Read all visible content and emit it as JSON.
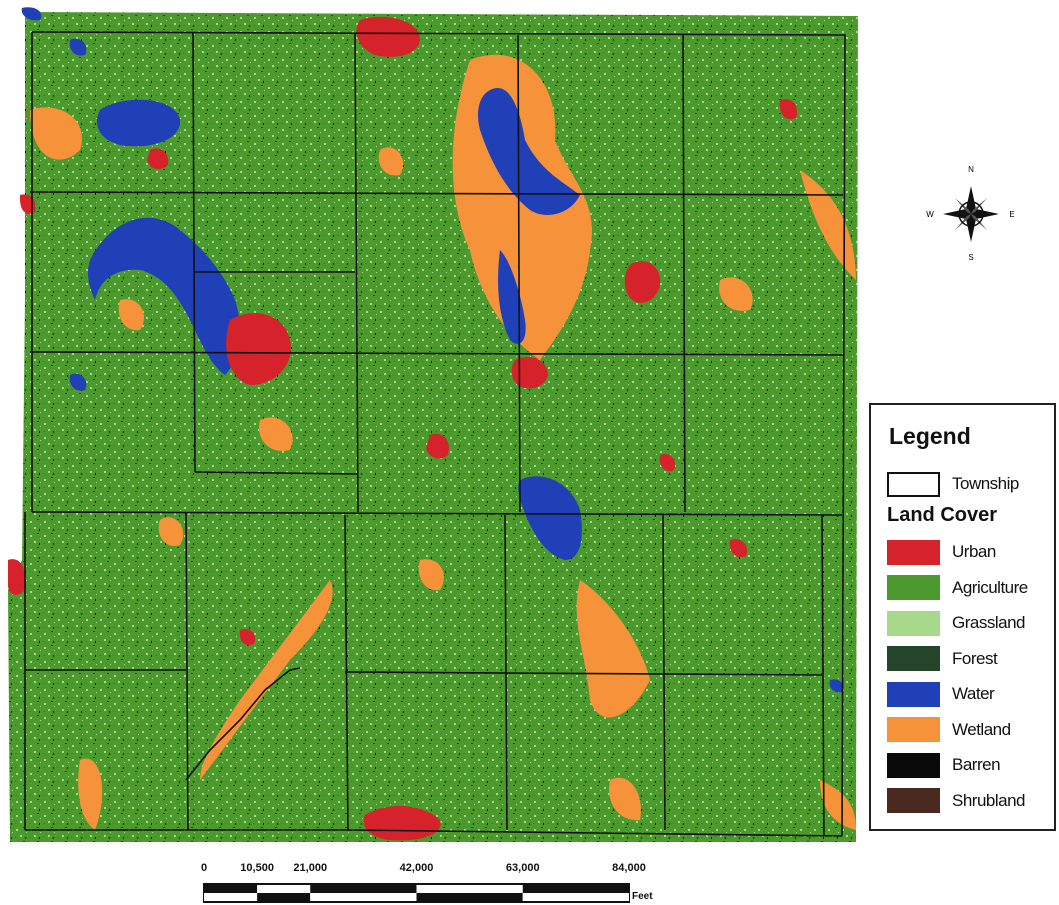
{
  "legend": {
    "title": "Legend",
    "township_label": "Township",
    "land_cover_title": "Land Cover",
    "classes": [
      {
        "label": "Urban",
        "color": "#d6222a"
      },
      {
        "label": "Agriculture",
        "color": "#4c9a2e"
      },
      {
        "label": "Grassland",
        "color": "#a8d88a"
      },
      {
        "label": "Forest",
        "color": "#25452a"
      },
      {
        "label": "Water",
        "color": "#2040b8"
      },
      {
        "label": "Wetland",
        "color": "#f5923a"
      },
      {
        "label": "Barren",
        "color": "#0a0a0a"
      },
      {
        "label": "Shrubland",
        "color": "#4a2a20"
      }
    ]
  },
  "north_arrow": {
    "n": "N",
    "s": "S",
    "e": "E",
    "w": "W",
    "icon": "compass-rose-icon"
  },
  "scale_bar": {
    "ticks": [
      "0",
      "10,500",
      "21,000",
      "42,000",
      "63,000",
      "84,000"
    ],
    "tick_values": [
      0,
      10500,
      21000,
      42000,
      63000,
      84000
    ],
    "unit": "Feet"
  }
}
